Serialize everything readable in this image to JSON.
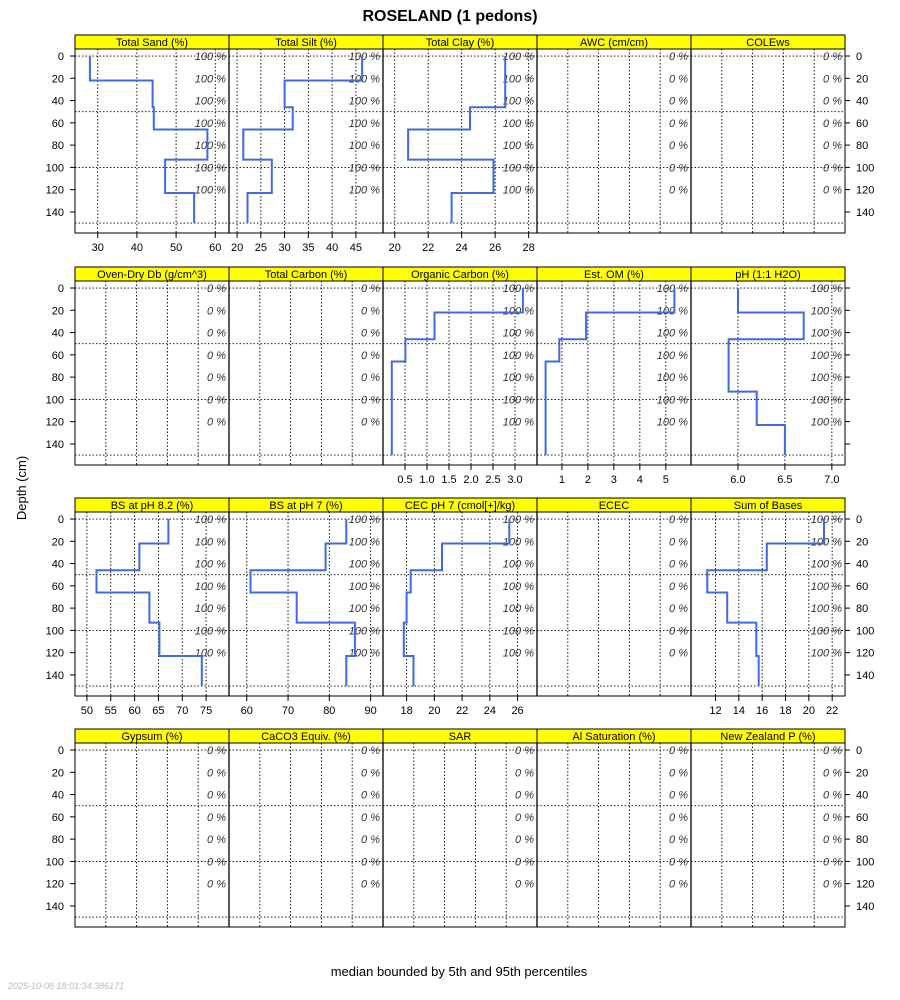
{
  "chart_data": {
    "type": "line",
    "title": "ROSELAND (1 pedons)",
    "ylabel": "Depth (cm)",
    "footer": "median bounded by 5th and 95th percentiles",
    "timestamp": "2025-10-08 18:01:34.386171",
    "ylim": [
      158.9,
      -6.3
    ],
    "yticks": [
      0,
      20,
      40,
      60,
      80,
      100,
      120,
      140
    ],
    "ygrid": [
      0,
      50,
      100,
      150
    ],
    "pct_label_depths": [
      0,
      20,
      40,
      60,
      80,
      100,
      120
    ],
    "horizon_depths": [
      0,
      22,
      46,
      66,
      93,
      123,
      150
    ],
    "line_color": "#4169E1",
    "strip_color": "#FFFF00",
    "panels": [
      {
        "title": "Total Sand (%)",
        "xlim": [
          24.2,
          63.5
        ],
        "xticks": [
          30,
          40,
          50,
          60
        ],
        "values": [
          28,
          44,
          44.3,
          58,
          47.2,
          54.6
        ],
        "pct": "100 %"
      },
      {
        "title": "Total Silt (%)",
        "xlim": [
          18.3,
          50.7
        ],
        "xticks": [
          20,
          25,
          30,
          35,
          40,
          45
        ],
        "values": [
          46.3,
          30,
          31.7,
          21.3,
          27.3,
          22.2
        ],
        "pct": "100 %"
      },
      {
        "title": "Total Clay (%)",
        "xlim": [
          19.3,
          28.5
        ],
        "xticks": [
          20,
          22,
          24,
          26,
          28
        ],
        "values": [
          26.6,
          26.6,
          24.5,
          20.8,
          25.9,
          23.4
        ],
        "pct": "100 %"
      },
      {
        "title": "AWC (cm/cm)",
        "xlim": null,
        "xticks": [],
        "values": null,
        "pct": "0 %"
      },
      {
        "title": "COLEws",
        "xlim": null,
        "xticks": [],
        "values": null,
        "pct": "0 %"
      },
      {
        "title": "Oven-Dry Db (g/cm^3)",
        "xlim": null,
        "xticks": [],
        "values": null,
        "pct": "0 %"
      },
      {
        "title": "Total Carbon (%)",
        "xlim": null,
        "xticks": [],
        "values": null,
        "pct": "0 %"
      },
      {
        "title": "Organic Carbon (%)",
        "xlim": [
          0,
          3.5
        ],
        "xticks": [
          "0.5",
          "1.0",
          "1.5",
          "2.0",
          "2.5",
          "3.0"
        ],
        "values": [
          3.18,
          1.17,
          0.51,
          0.2,
          0.2,
          0.2
        ],
        "pct": "100 %"
      },
      {
        "title": "Est. OM (%)",
        "xlim": [
          0.04,
          5.97
        ],
        "xticks": [
          1,
          2,
          3,
          4,
          5
        ],
        "values": [
          5.33,
          1.93,
          0.9,
          0.37,
          0.37,
          0.37
        ],
        "pct": "100 %"
      },
      {
        "title": "pH (1:1 H2O)",
        "xlim": [
          5.5,
          7.14
        ],
        "xticks": [
          "6.0",
          "6.5",
          "7.0"
        ],
        "values": [
          6.0,
          6.7,
          5.9,
          5.9,
          6.2,
          6.5
        ],
        "pct": "100 %"
      },
      {
        "title": "BS at pH 8.2 (%)",
        "xlim": [
          47.5,
          79.8
        ],
        "xticks": [
          50,
          55,
          60,
          65,
          70,
          75
        ],
        "values": [
          67.1,
          61,
          52,
          63.1,
          65.2,
          74.1
        ],
        "pct": "100 %"
      },
      {
        "title": "BS at pH 7 (%)",
        "xlim": [
          55.7,
          93
        ],
        "xticks": [
          60,
          70,
          80,
          90
        ],
        "values": [
          84.1,
          79.1,
          60.9,
          72.1,
          86.2,
          84.1
        ],
        "pct": "100 %"
      },
      {
        "title": "CEC pH 7 (cmol[+]/kg)",
        "xlim": [
          16.3,
          27.4
        ],
        "xticks": [
          18,
          20,
          22,
          24,
          26
        ],
        "values": [
          25.4,
          20.55,
          18.3,
          18.0,
          17.8,
          18.5
        ],
        "pct": "100 %"
      },
      {
        "title": "ECEC",
        "xlim": null,
        "xticks": [],
        "values": null,
        "pct": "0 %"
      },
      {
        "title": "Sum of Bases",
        "xlim": [
          9.9,
          23.1
        ],
        "xticks": [
          12,
          14,
          16,
          18,
          20,
          22
        ],
        "values": [
          21.3,
          16.4,
          11.3,
          13.0,
          15.5,
          15.7
        ],
        "pct": "100 %"
      },
      {
        "title": "Gypsum (%)",
        "xlim": null,
        "xticks": [],
        "values": null,
        "pct": "0 %"
      },
      {
        "title": "CaCO3 Equiv. (%)",
        "xlim": null,
        "xticks": [],
        "values": null,
        "pct": "0 %"
      },
      {
        "title": "SAR",
        "xlim": null,
        "xticks": [],
        "values": null,
        "pct": "0 %"
      },
      {
        "title": "Al Saturation (%)",
        "xlim": null,
        "xticks": [],
        "values": null,
        "pct": "0 %"
      },
      {
        "title": "New Zealand P (%)",
        "xlim": null,
        "xticks": [],
        "values": null,
        "pct": "0 %"
      }
    ]
  }
}
